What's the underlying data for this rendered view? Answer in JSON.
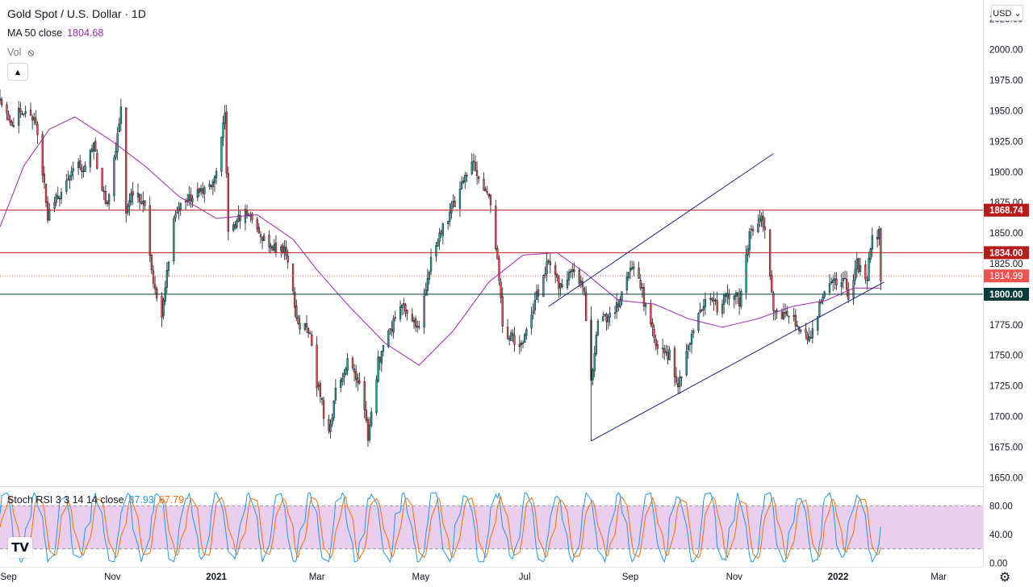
{
  "header": {
    "title": "Gold Spot / U.S. Dollar · 1D",
    "ma_label": "MA 50 close",
    "ma_value": "1804.68",
    "vol_label": "Vol",
    "currency": "USD",
    "currency_icon": "chevron-down-icon",
    "vol_visibility_icon": "eye-crossed-icon",
    "collapse_icon": "chevron-up-icon"
  },
  "stoch": {
    "label": "Stoch RSI 3 3 14 14 close",
    "k_value": "37.93",
    "d_value": "67.79"
  },
  "chart_data": {
    "type": "candlestick",
    "symbol": "Gold Spot / U.S. Dollar",
    "interval": "1D",
    "ylim": [
      1643,
      2038
    ],
    "y_ticks": [
      "2025.00",
      "2000.00",
      "1975.00",
      "1950.00",
      "1925.00",
      "1900.00",
      "1875.00",
      "1850.00",
      "1825.00",
      "1800.00",
      "1775.00",
      "1750.00",
      "1725.00",
      "1700.00",
      "1675.00",
      "1650.00"
    ],
    "x_ticks": [
      "Sep",
      "Nov",
      "2021",
      "Mar",
      "May",
      "Jul",
      "Sep",
      "Nov",
      "2022",
      "Mar"
    ],
    "x_range": [
      "2020-08-27",
      "2022-03-27"
    ],
    "tick_dates": [
      "2020-09-01",
      "2020-11-01",
      "2021-01-01",
      "2021-03-01",
      "2021-05-01",
      "2021-07-01",
      "2021-09-01",
      "2021-11-01",
      "2022-01-01",
      "2022-03-01"
    ],
    "last_date": "2022-01-26",
    "up_color": "#26a69a",
    "down_color": "#ef5350",
    "candle_border": "#131722",
    "price_anchors": [
      [
        "2020-08-27",
        1960
      ],
      [
        "2020-09-02",
        1940
      ],
      [
        "2020-09-10",
        1952
      ],
      [
        "2020-09-17",
        1945
      ],
      [
        "2020-09-24",
        1865
      ],
      [
        "2020-10-08",
        1900
      ],
      [
        "2020-10-15",
        1905
      ],
      [
        "2020-10-21",
        1920
      ],
      [
        "2020-10-29",
        1870
      ],
      [
        "2020-11-06",
        1950
      ],
      [
        "2020-11-09",
        1865
      ],
      [
        "2020-11-13",
        1885
      ],
      [
        "2020-11-20",
        1870
      ],
      [
        "2020-11-25",
        1805
      ],
      [
        "2020-11-30",
        1778
      ],
      [
        "2020-12-07",
        1865
      ],
      [
        "2020-12-18",
        1880
      ],
      [
        "2020-12-31",
        1895
      ],
      [
        "2021-01-06",
        1950
      ],
      [
        "2021-01-08",
        1850
      ],
      [
        "2021-01-20",
        1870
      ],
      [
        "2021-02-02",
        1835
      ],
      [
        "2021-02-10",
        1840
      ],
      [
        "2021-02-18",
        1775
      ],
      [
        "2021-02-25",
        1770
      ],
      [
        "2021-03-01",
        1728
      ],
      [
        "2021-03-08",
        1685
      ],
      [
        "2021-03-12",
        1720
      ],
      [
        "2021-03-19",
        1745
      ],
      [
        "2021-03-26",
        1730
      ],
      [
        "2021-03-31",
        1685
      ],
      [
        "2021-04-06",
        1745
      ],
      [
        "2021-04-16",
        1780
      ],
      [
        "2021-04-22",
        1790
      ],
      [
        "2021-04-29",
        1770
      ],
      [
        "2021-05-07",
        1830
      ],
      [
        "2021-05-19",
        1870
      ],
      [
        "2021-05-27",
        1895
      ],
      [
        "2021-06-01",
        1905
      ],
      [
        "2021-06-04",
        1890
      ],
      [
        "2021-06-11",
        1878
      ],
      [
        "2021-06-16",
        1815
      ],
      [
        "2021-06-18",
        1770
      ],
      [
        "2021-06-29",
        1760
      ],
      [
        "2021-07-06",
        1790
      ],
      [
        "2021-07-15",
        1830
      ],
      [
        "2021-07-21",
        1805
      ],
      [
        "2021-07-30",
        1818
      ],
      [
        "2021-08-05",
        1800
      ],
      [
        "2021-08-09",
        1728
      ],
      [
        "2021-08-13",
        1780
      ],
      [
        "2021-08-20",
        1782
      ],
      [
        "2021-08-26",
        1795
      ],
      [
        "2021-09-03",
        1825
      ],
      [
        "2021-09-09",
        1795
      ],
      [
        "2021-09-17",
        1755
      ],
      [
        "2021-09-24",
        1750
      ],
      [
        "2021-09-29",
        1725
      ],
      [
        "2021-10-06",
        1760
      ],
      [
        "2021-10-14",
        1795
      ],
      [
        "2021-10-22",
        1790
      ],
      [
        "2021-10-28",
        1800
      ],
      [
        "2021-11-04",
        1795
      ],
      [
        "2021-11-10",
        1848
      ],
      [
        "2021-11-16",
        1865
      ],
      [
        "2021-11-19",
        1850
      ],
      [
        "2021-11-24",
        1785
      ],
      [
        "2021-12-03",
        1785
      ],
      [
        "2021-12-15",
        1765
      ],
      [
        "2021-12-21",
        1790
      ],
      [
        "2021-12-28",
        1810
      ],
      [
        "2022-01-04",
        1815
      ],
      [
        "2022-01-07",
        1795
      ],
      [
        "2022-01-12",
        1825
      ],
      [
        "2022-01-18",
        1815
      ],
      [
        "2022-01-20",
        1842
      ],
      [
        "2022-01-25",
        1850
      ],
      [
        "2022-01-26",
        1815
      ]
    ],
    "ma50_anchors": [
      [
        "2020-08-27",
        1855
      ],
      [
        "2020-09-10",
        1905
      ],
      [
        "2020-09-25",
        1935
      ],
      [
        "2020-10-10",
        1945
      ],
      [
        "2020-11-01",
        1925
      ],
      [
        "2020-11-20",
        1905
      ],
      [
        "2020-12-10",
        1880
      ],
      [
        "2021-01-01",
        1862
      ],
      [
        "2021-01-25",
        1865
      ],
      [
        "2021-02-15",
        1845
      ],
      [
        "2021-03-01",
        1820
      ],
      [
        "2021-03-20",
        1790
      ],
      [
        "2021-04-10",
        1760
      ],
      [
        "2021-04-30",
        1742
      ],
      [
        "2021-05-20",
        1770
      ],
      [
        "2021-06-10",
        1810
      ],
      [
        "2021-06-30",
        1832
      ],
      [
        "2021-07-20",
        1834
      ],
      [
        "2021-08-05",
        1818
      ],
      [
        "2021-08-25",
        1795
      ],
      [
        "2021-09-15",
        1792
      ],
      [
        "2021-10-05",
        1780
      ],
      [
        "2021-10-25",
        1773
      ],
      [
        "2021-11-15",
        1780
      ],
      [
        "2021-12-05",
        1790
      ],
      [
        "2021-12-25",
        1795
      ],
      [
        "2022-01-10",
        1805
      ],
      [
        "2022-01-26",
        1805
      ]
    ],
    "ma50_color": "#9c27b0",
    "horizontal_levels": [
      {
        "price": 1868.74,
        "label": "1868.74",
        "color": "#b71c1c"
      },
      {
        "price": 1834.0,
        "label": "1834.00",
        "color": "#b71c1c"
      },
      {
        "price": 1800.0,
        "label": "1800.00",
        "color": "#0b3b3b"
      }
    ],
    "last_price": {
      "price": 1814.99,
      "label": "1814.99",
      "color": "#ef5350"
    },
    "trendlines": [
      {
        "from": [
          "2021-07-15",
          1790
        ],
        "to": [
          "2021-11-24",
          1915
        ],
        "color": "#1a237e"
      },
      {
        "from": [
          "2021-08-09",
          1680
        ],
        "to": [
          "2022-01-28",
          1810
        ],
        "color": "#1a237e"
      }
    ],
    "trendline_vertical": {
      "date": "2021-08-09",
      "from": 1680,
      "to": 1790
    },
    "stoch_rsi": {
      "ylim": [
        -5,
        105
      ],
      "y_ticks": [
        "80.00",
        "40.00",
        "0.00"
      ],
      "band": [
        20,
        80
      ],
      "k_color": "#2196f3",
      "d_color": "#ff6d00",
      "band_color": "#e1bee7"
    }
  }
}
